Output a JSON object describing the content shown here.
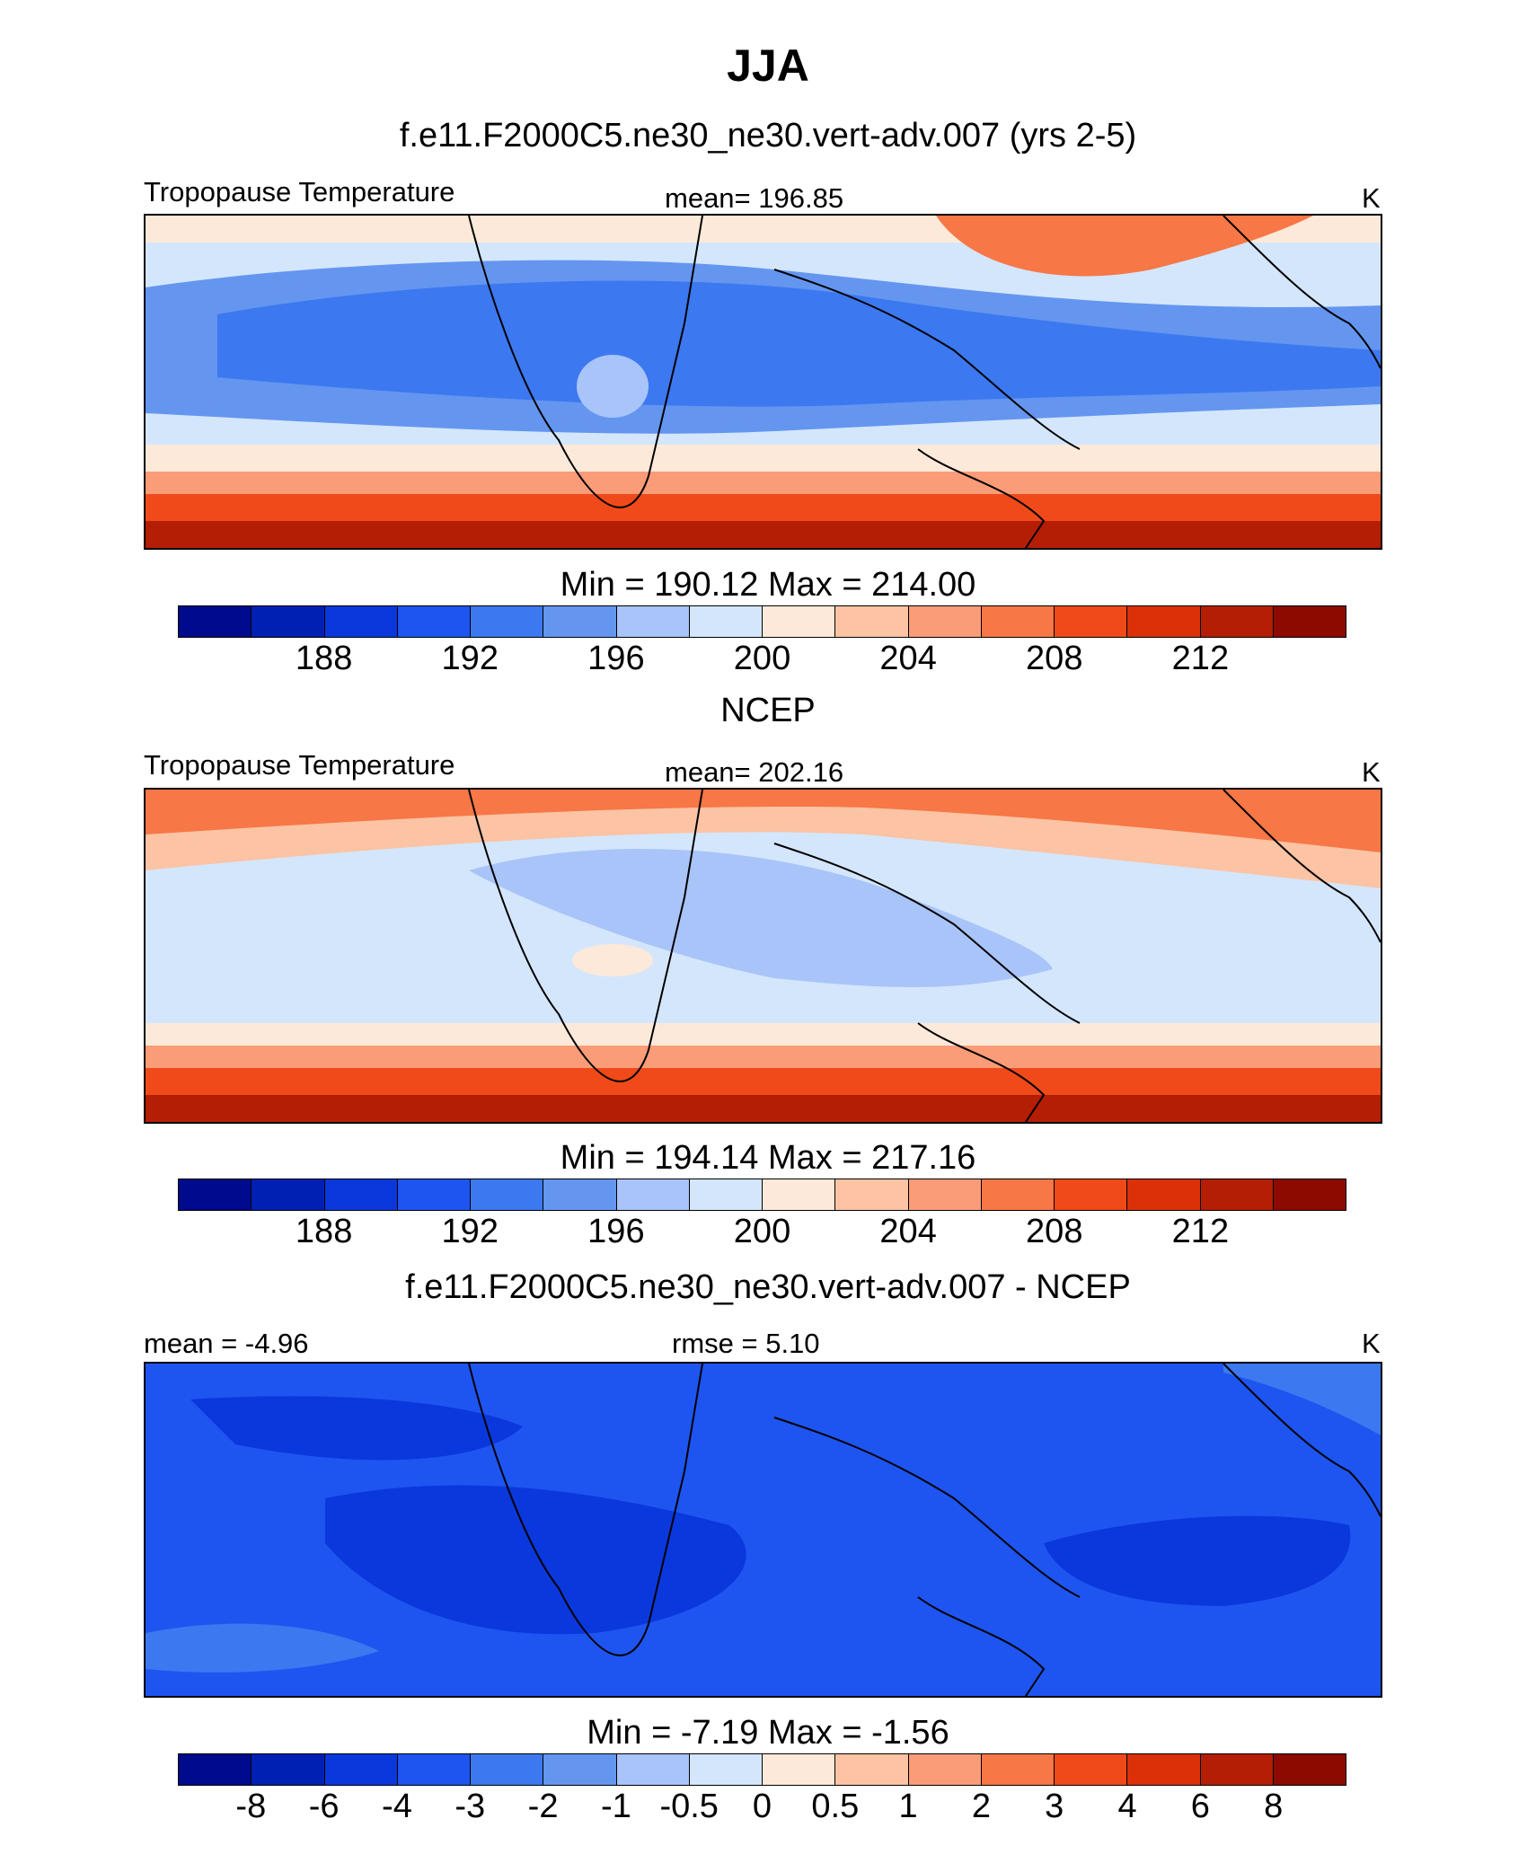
{
  "page_title": "JJA",
  "chart_data": [
    {
      "type": "heatmap",
      "subtitle": "f.e11.F2000C5.ne30_ne30.vert-adv.007 (yrs 2-5)",
      "left_label": "Tropopause Temperature",
      "center_label": "mean= 196.85",
      "units": "K",
      "minmax": "Min = 190.12 Max = 214.00",
      "colorbar_ticks": [
        "188",
        "192",
        "196",
        "200",
        "204",
        "208",
        "212"
      ],
      "colorbar_levels": [
        186,
        188,
        190,
        192,
        194,
        196,
        198,
        200,
        202,
        204,
        206,
        208,
        210,
        212,
        214
      ]
    },
    {
      "type": "heatmap",
      "subtitle": "NCEP",
      "left_label": "Tropopause Temperature",
      "center_label": "mean= 202.16",
      "units": "K",
      "minmax": "Min = 194.14 Max = 217.16",
      "colorbar_ticks": [
        "188",
        "192",
        "196",
        "200",
        "204",
        "208",
        "212"
      ],
      "colorbar_levels": [
        186,
        188,
        190,
        192,
        194,
        196,
        198,
        200,
        202,
        204,
        206,
        208,
        210,
        212,
        214
      ]
    },
    {
      "type": "heatmap",
      "subtitle": "f.e11.F2000C5.ne30_ne30.vert-adv.007 - NCEP",
      "left_label": "mean =  -4.96",
      "center_label": "rmse =   5.10",
      "units": "K",
      "minmax": "Min =  -7.19 Max =  -1.56",
      "colorbar_ticks": [
        "-8",
        "-6",
        "-4",
        "-3",
        "-2",
        "-1",
        "-0.5",
        "0",
        "0.5",
        "1",
        "2",
        "3",
        "4",
        "6",
        "8"
      ],
      "colorbar_levels": [
        -8,
        -6,
        -4,
        -3,
        -2,
        -1,
        -0.5,
        0,
        0.5,
        1,
        2,
        3,
        4,
        6,
        8
      ]
    }
  ],
  "colormap": [
    "#000a8c",
    "#0020b4",
    "#0a38dc",
    "#1e55f0",
    "#3c78f0",
    "#6496f0",
    "#a8c4f8",
    "#d4e6fc",
    "#fde9d9",
    "#fcc3a4",
    "#fa9c78",
    "#f77746",
    "#f04a1a",
    "#dc3008",
    "#b41e04",
    "#8c0a00"
  ]
}
